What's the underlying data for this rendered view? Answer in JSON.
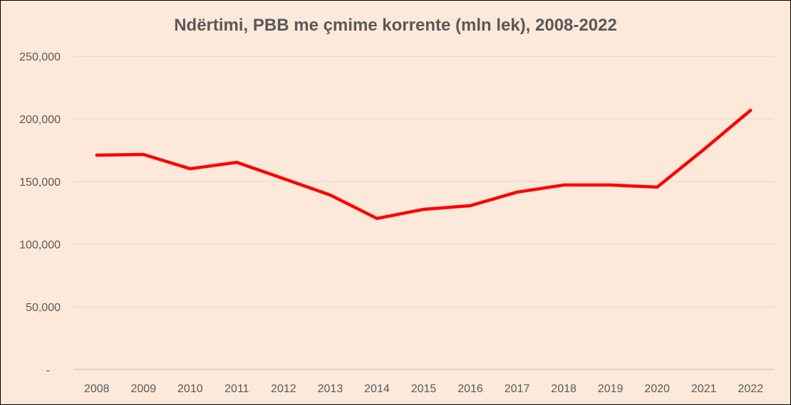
{
  "chart_data": {
    "type": "line",
    "title": "Ndërtimi, PBB me çmime korrente (mln lek), 2008-2022",
    "xlabel": "",
    "ylabel": "",
    "categories": [
      "2008",
      "2009",
      "2010",
      "2011",
      "2012",
      "2013",
      "2014",
      "2015",
      "2016",
      "2017",
      "2018",
      "2019",
      "2020",
      "2021",
      "2022"
    ],
    "series": [
      {
        "name": "Ndërtimi",
        "color": "#ff0000",
        "values": [
          171000,
          171600,
          160200,
          165300,
          152300,
          139200,
          120500,
          127800,
          130700,
          141500,
          147200,
          147200,
          145500,
          175600,
          206800
        ]
      }
    ],
    "ylim": [
      0,
      250000
    ],
    "yticks": [
      0,
      50000,
      100000,
      150000,
      200000,
      250000
    ],
    "ytick_labels": [
      "-",
      "50,000",
      "100,000",
      "150,000",
      "200,000",
      "250,000"
    ],
    "grid": true,
    "legend": "none"
  }
}
